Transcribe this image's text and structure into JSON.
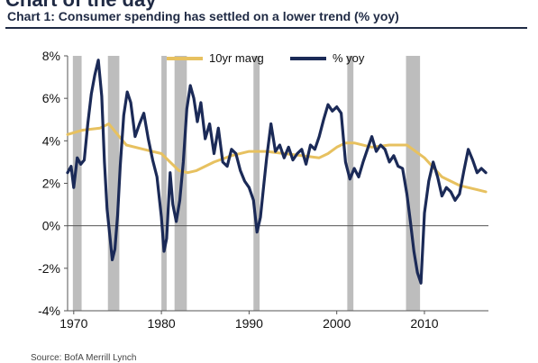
{
  "header": {
    "cut_title": "Chart of the day",
    "chart_title": "Chart 1: Consumer spending has settled on a lower trend (% yoy)"
  },
  "footer": {
    "cut_source": "Source: BofA Merrill Lynch"
  },
  "chart_data": {
    "type": "line",
    "title": "Chart 1: Consumer spending has settled on a lower trend (% yoy)",
    "xlabel": "",
    "ylabel": "",
    "xlim": [
      1969.3,
      2017.3
    ],
    "ylim": [
      -4,
      8
    ],
    "x_ticks": [
      1970,
      1980,
      1990,
      2000,
      2010
    ],
    "y_ticks": [
      -4,
      -2,
      0,
      2,
      4,
      6,
      8
    ],
    "y_tick_labels": [
      "-4%",
      "-2%",
      "0%",
      "2%",
      "4%",
      "6%",
      "8%"
    ],
    "grid": false,
    "legend": {
      "placement": "top-center",
      "entries": [
        "10yr mavg",
        "% yoy"
      ]
    },
    "recession_shading": [
      [
        1969.9,
        1970.9
      ],
      [
        1973.9,
        1975.2
      ],
      [
        1980.0,
        1980.6
      ],
      [
        1981.5,
        1982.9
      ],
      [
        1990.5,
        1991.2
      ],
      [
        2001.2,
        2001.9
      ],
      [
        2007.9,
        2009.5
      ]
    ],
    "colors": {
      "mavg": "#e7c160",
      "yoy": "#1b2a57",
      "recession": "#bdbdbd"
    },
    "series": [
      {
        "name": "10yr mavg",
        "color": "#e7c160",
        "x": [
          1969.3,
          1971,
          1973,
          1974,
          1975,
          1976,
          1978,
          1980,
          1981,
          1982,
          1983,
          1984,
          1986,
          1988,
          1990,
          1992,
          1994,
          1996,
          1998,
          1999,
          2000,
          2001,
          2002,
          2004,
          2006,
          2008,
          2009,
          2010,
          2012,
          2014,
          2016,
          2017
        ],
        "y": [
          4.3,
          4.5,
          4.6,
          4.8,
          4.3,
          3.8,
          3.6,
          3.4,
          3.0,
          2.6,
          2.5,
          2.6,
          3.0,
          3.3,
          3.5,
          3.5,
          3.4,
          3.3,
          3.2,
          3.4,
          3.7,
          3.9,
          3.9,
          3.7,
          3.8,
          3.8,
          3.5,
          3.2,
          2.3,
          1.9,
          1.7,
          1.6
        ]
      },
      {
        "name": "% yoy",
        "color": "#1b2a57",
        "x": [
          1969.3,
          1969.7,
          1970.0,
          1970.4,
          1970.8,
          1971.2,
          1971.6,
          1972.0,
          1972.4,
          1972.8,
          1973.2,
          1973.5,
          1973.8,
          1974.1,
          1974.4,
          1974.7,
          1975.0,
          1975.3,
          1975.7,
          1976.1,
          1976.5,
          1977.0,
          1977.5,
          1978.0,
          1978.5,
          1979.0,
          1979.5,
          1980.0,
          1980.3,
          1980.6,
          1981.0,
          1981.3,
          1981.7,
          1982.1,
          1982.5,
          1982.9,
          1983.3,
          1983.7,
          1984.1,
          1984.5,
          1985.0,
          1985.5,
          1986.0,
          1986.5,
          1987.0,
          1987.5,
          1988.0,
          1988.5,
          1989.0,
          1989.5,
          1990.0,
          1990.5,
          1990.9,
          1991.3,
          1991.7,
          1992.0,
          1992.5,
          1993.0,
          1993.5,
          1994.0,
          1994.5,
          1995.0,
          1995.5,
          1996.0,
          1996.5,
          1997.0,
          1997.5,
          1998.0,
          1998.5,
          1999.0,
          1999.5,
          2000.0,
          2000.5,
          2001.0,
          2001.5,
          2002.0,
          2002.5,
          2003.0,
          2003.5,
          2004.0,
          2004.5,
          2005.0,
          2005.5,
          2006.0,
          2006.5,
          2007.0,
          2007.5,
          2008.0,
          2008.4,
          2008.8,
          2009.2,
          2009.6,
          2010.0,
          2010.5,
          2011.0,
          2011.5,
          2012.0,
          2012.5,
          2013.0,
          2013.5,
          2014.0,
          2014.5,
          2015.0,
          2015.5,
          2016.0,
          2016.5,
          2017.0
        ],
        "y": [
          2.5,
          2.8,
          1.8,
          3.2,
          2.9,
          3.1,
          4.8,
          6.2,
          7.1,
          7.8,
          6.1,
          3.0,
          0.8,
          -0.4,
          -1.6,
          -1.1,
          0.5,
          2.8,
          5.2,
          6.3,
          5.8,
          4.2,
          4.8,
          5.3,
          4.1,
          3.1,
          2.3,
          0.4,
          -1.2,
          -0.6,
          2.5,
          1.0,
          0.2,
          1.2,
          3.0,
          5.5,
          6.6,
          6.0,
          4.9,
          5.8,
          4.1,
          4.8,
          3.4,
          4.6,
          3.0,
          2.8,
          3.6,
          3.4,
          2.6,
          2.1,
          1.8,
          1.2,
          -0.3,
          0.4,
          2.0,
          3.2,
          4.8,
          3.5,
          3.8,
          3.2,
          3.7,
          3.1,
          3.4,
          3.6,
          2.9,
          3.8,
          3.6,
          4.2,
          5.0,
          5.7,
          5.4,
          5.6,
          5.3,
          3.0,
          2.2,
          2.7,
          2.3,
          3.0,
          3.6,
          4.2,
          3.5,
          3.8,
          3.6,
          3.0,
          3.3,
          2.8,
          2.7,
          1.5,
          0.2,
          -1.2,
          -2.2,
          -2.7,
          0.6,
          2.1,
          3.0,
          2.3,
          1.4,
          1.8,
          1.6,
          1.2,
          1.5,
          2.6,
          3.6,
          3.1,
          2.5,
          2.7,
          2.5
        ]
      }
    ]
  }
}
